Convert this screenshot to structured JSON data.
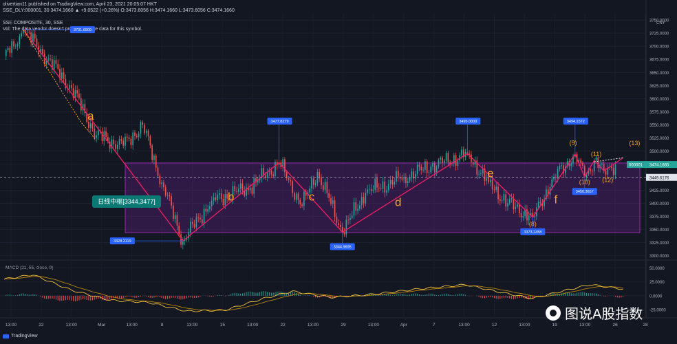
{
  "header": {
    "line1": "olivertian11 published on TradingView.com, April 23, 2021 20:05:07 HKT",
    "line2": "SSE_DLY:000001, 30  3474.1660  ▲ +9.0522 (+0.26%)  O:3473.6056  H:3474.1660  L:3473.6056  C:3474.1660",
    "line3": "SSE COMPOSITE, 30, SSE",
    "line4": "Vol: The data vendor doesn't provide volume data for this symbol."
  },
  "brand": {
    "label": "TradingView"
  },
  "watermark": {
    "text": "图说A股指数"
  },
  "colors": {
    "background": "#131722",
    "up": "#26a69a",
    "down": "#ef5350",
    "wave": "#e91e63",
    "zone": "#7b1fa2",
    "label_orange": "#f5a623",
    "callout_bg": "#2962ff",
    "zone_label_bg": "#0b7a75",
    "price_tag": "#26a69a",
    "macd_line": "#f3c03e",
    "signal_line": "#b8860b"
  },
  "chart_data": {
    "type": "candlestick",
    "currency": "CNY",
    "y_ticks": [
      3300,
      3325,
      3350,
      3375,
      3400,
      3425,
      3450,
      3475,
      3500,
      3525,
      3550,
      3575,
      3600,
      3625,
      3650,
      3675,
      3700,
      3725,
      3750
    ],
    "y_tick_labels": [
      "3300.0000",
      "3325.0000",
      "3350.0000",
      "3375.0000",
      "3400.0000",
      "3425.0000",
      "3450.0000",
      "3475.0000",
      "3500.0000",
      "3525.0000",
      "3550.0000",
      "3575.0000",
      "3600.0000",
      "3625.0000",
      "3650.0000",
      "3675.0000",
      "3700.0000",
      "3725.0000",
      "3750.0000"
    ],
    "ylim": [
      3293,
      3762
    ],
    "x_tick_labels": [
      "13:00",
      "22",
      "13:00",
      "Mar",
      "13:00",
      "8",
      "13:00",
      "15",
      "13:00",
      "22",
      "13:00",
      "29",
      "13:00",
      "Apr",
      "7",
      "13:00",
      "12",
      "13:00",
      "19",
      "13:00",
      "26",
      "28"
    ],
    "price_tags": [
      {
        "label": "000001",
        "value": "3474.1660"
      },
      {
        "label": "",
        "value": "3449.6176"
      }
    ],
    "last_price": 3474.166,
    "dashed_level": 3449.6176,
    "zone": {
      "low": 3344,
      "high": 3477,
      "label": "日线中枢[3344,3477]"
    },
    "anchors": [
      {
        "x": 0,
        "y": 3681
      },
      {
        "x": 5,
        "y": 3700
      },
      {
        "x": 10,
        "y": 3731.69
      },
      {
        "x": 35,
        "y": 3620
      },
      {
        "x": 48,
        "y": 3530
      },
      {
        "x": 62,
        "y": 3510
      },
      {
        "x": 72,
        "y": 3550
      },
      {
        "x": 82,
        "y": 3440
      },
      {
        "x": 93,
        "y": 3328.3119
      },
      {
        "x": 108,
        "y": 3405
      },
      {
        "x": 128,
        "y": 3430
      },
      {
        "x": 143,
        "y": 3477.8279
      },
      {
        "x": 155,
        "y": 3395
      },
      {
        "x": 163,
        "y": 3460
      },
      {
        "x": 176,
        "y": 3344.9695
      },
      {
        "x": 188,
        "y": 3420
      },
      {
        "x": 208,
        "y": 3450
      },
      {
        "x": 222,
        "y": 3470
      },
      {
        "x": 241,
        "y": 3495
      },
      {
        "x": 252,
        "y": 3440
      },
      {
        "x": 262,
        "y": 3400
      },
      {
        "x": 275,
        "y": 3373.2458
      },
      {
        "x": 286,
        "y": 3450
      },
      {
        "x": 297,
        "y": 3494.1572
      },
      {
        "x": 302,
        "y": 3450.3657
      },
      {
        "x": 307,
        "y": 3482
      },
      {
        "x": 312,
        "y": 3462
      },
      {
        "x": 318,
        "y": 3474.166
      }
    ],
    "annotations": [
      {
        "label": "3731.6900",
        "x": 10,
        "y": 3731.69,
        "pos": "right"
      },
      {
        "label": "3328.3119",
        "x": 93,
        "y": 3328.3119,
        "pos": "left"
      },
      {
        "label": "3477.8279",
        "x": 143,
        "y": 3477.8279,
        "pos": "up"
      },
      {
        "label": "3344.9695",
        "x": 176,
        "y": 3344.9695,
        "pos": "down"
      },
      {
        "label": "3495.0000",
        "x": 241,
        "y": 3495,
        "pos": "up"
      },
      {
        "label": "3373.2458",
        "x": 275,
        "y": 3373.2458,
        "pos": "down"
      },
      {
        "label": "3494.1572",
        "x": 297,
        "y": 3494.1572,
        "pos": "up"
      },
      {
        "label": "3450.3657",
        "x": 302,
        "y": 3450.3657,
        "pos": "down"
      }
    ],
    "wave_points": [
      {
        "x": 10,
        "y": 3731.69
      },
      {
        "x": 93,
        "y": 3328.3119
      },
      {
        "x": 143,
        "y": 3477.8279
      },
      {
        "x": 176,
        "y": 3344.9695
      },
      {
        "x": 241,
        "y": 3495
      },
      {
        "x": 275,
        "y": 3373.2458
      },
      {
        "x": 297,
        "y": 3494.1572
      },
      {
        "x": 302,
        "y": 3450.3657
      },
      {
        "x": 307,
        "y": 3482
      },
      {
        "x": 312,
        "y": 3462
      },
      {
        "x": 322,
        "y": 3487
      }
    ],
    "wave_labels": [
      {
        "text": "a",
        "x": 45,
        "y": 3560,
        "size": "large"
      },
      {
        "text": "b",
        "x": 118,
        "y": 3405,
        "size": "large"
      },
      {
        "text": "c",
        "x": 160,
        "y": 3405,
        "size": "large"
      },
      {
        "text": "d",
        "x": 205,
        "y": 3395,
        "size": "large"
      },
      {
        "text": "e",
        "x": 253,
        "y": 3450,
        "size": "large"
      },
      {
        "text": "f",
        "x": 287,
        "y": 3400,
        "size": "large"
      },
      {
        "text": "(8)",
        "x": 275,
        "y": 3357,
        "size": "small"
      },
      {
        "text": "(9)",
        "x": 296,
        "y": 3512,
        "size": "small"
      },
      {
        "text": "(10)",
        "x": 302,
        "y": 3437,
        "size": "small"
      },
      {
        "text": "(11)",
        "x": 308,
        "y": 3490,
        "size": "small"
      },
      {
        "text": "(12)",
        "x": 314,
        "y": 3441,
        "size": "small"
      },
      {
        "text": "(13)",
        "x": 328,
        "y": 3511,
        "size": "small"
      }
    ],
    "macd": {
      "title": "MACD (21, 55, close, 9)",
      "y_tick_labels": [
        "50.0000",
        "25.0000",
        "0.0000",
        "-25.0000"
      ],
      "ylim": [
        -40,
        62
      ],
      "anchors": [
        {
          "x": 0,
          "y": 30
        },
        {
          "x": 15,
          "y": 38
        },
        {
          "x": 35,
          "y": 10
        },
        {
          "x": 55,
          "y": -8
        },
        {
          "x": 75,
          "y": -12
        },
        {
          "x": 95,
          "y": -28
        },
        {
          "x": 115,
          "y": -26
        },
        {
          "x": 135,
          "y": -5
        },
        {
          "x": 150,
          "y": 8
        },
        {
          "x": 170,
          "y": -3
        },
        {
          "x": 190,
          "y": 2
        },
        {
          "x": 215,
          "y": 12
        },
        {
          "x": 240,
          "y": 20
        },
        {
          "x": 260,
          "y": 5
        },
        {
          "x": 275,
          "y": -5
        },
        {
          "x": 290,
          "y": 8
        },
        {
          "x": 305,
          "y": 20
        },
        {
          "x": 322,
          "y": 12
        }
      ]
    }
  }
}
